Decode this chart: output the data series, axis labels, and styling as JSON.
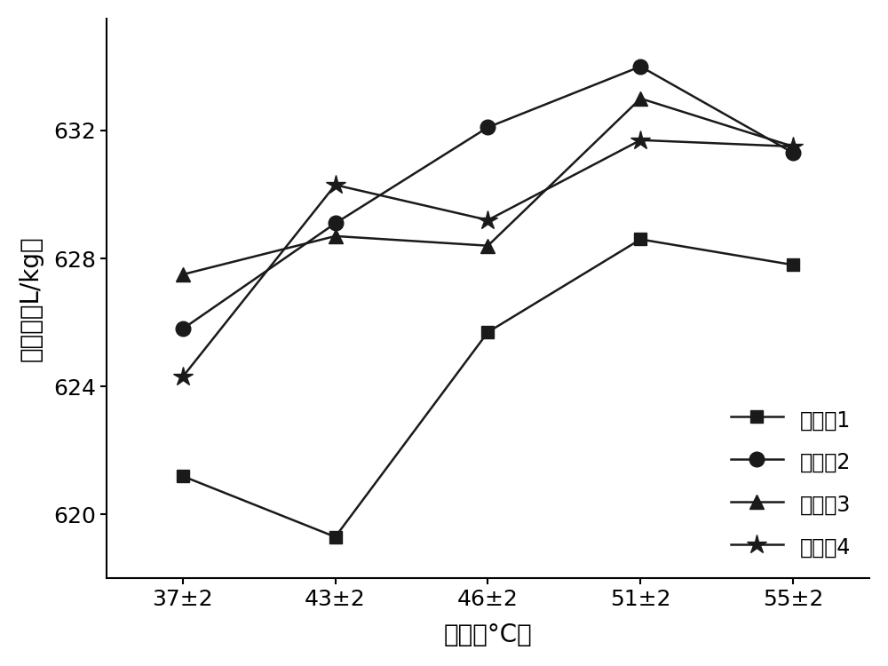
{
  "x_labels": [
    "37±2",
    "43±2",
    "46±2",
    "51±2",
    "55±2"
  ],
  "x_positions": [
    0,
    1,
    2,
    3,
    4
  ],
  "series": [
    {
      "label": "实施例1",
      "values": [
        621.2,
        619.3,
        625.7,
        628.6,
        627.8
      ],
      "marker": "s",
      "markersize": 10
    },
    {
      "label": "实施例2",
      "values": [
        625.8,
        629.1,
        632.1,
        634.0,
        631.3
      ],
      "marker": "o",
      "markersize": 12
    },
    {
      "label": "实施例3",
      "values": [
        627.5,
        628.7,
        628.4,
        633.0,
        631.5
      ],
      "marker": "^",
      "markersize": 11
    },
    {
      "label": "实施例4",
      "values": [
        624.3,
        630.3,
        629.2,
        631.7,
        631.5
      ],
      "marker": "*",
      "markersize": 16
    }
  ],
  "ylabel": "产气量（L/kg）",
  "xlabel": "温度（°C）",
  "ylim": [
    618.0,
    635.5
  ],
  "yticks": [
    620,
    624,
    628,
    632
  ],
  "line_color": "#1a1a1a",
  "background_color": "#ffffff",
  "label_fontsize": 20,
  "tick_fontsize": 18,
  "legend_fontsize": 17,
  "linewidth": 1.8
}
